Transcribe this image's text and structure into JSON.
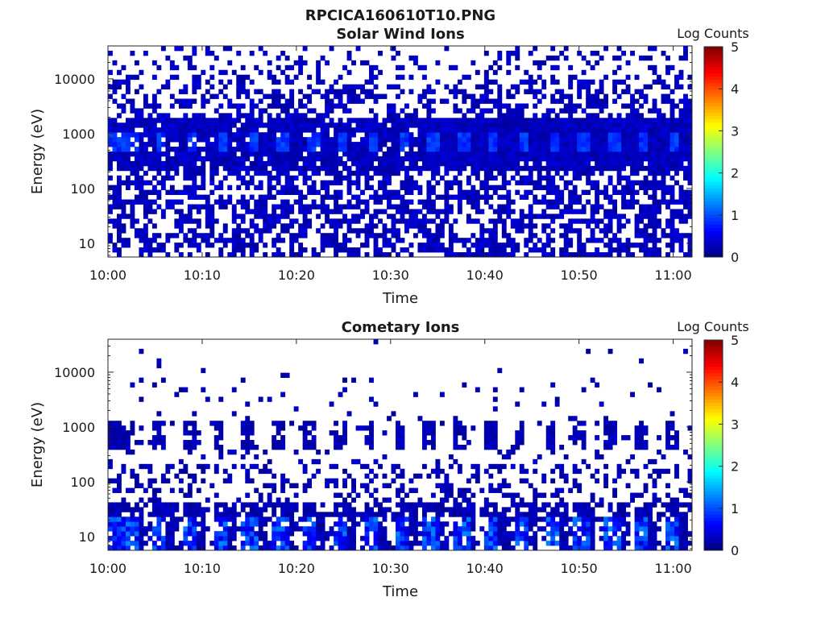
{
  "figure_title": "RPCICA160610T10.PNG",
  "chart_data": [
    {
      "type": "heatmap",
      "title": "Solar Wind Ions",
      "xlabel": "Time",
      "ylabel": "Energy (eV)",
      "x_ticks": [
        "10:00",
        "10:10",
        "10:20",
        "10:30",
        "10:40",
        "10:50",
        "11:00"
      ],
      "y_ticks": [
        "10",
        "100",
        "1000",
        "10000"
      ],
      "y_scale": "log",
      "xlim": [
        "10:00",
        "11:02"
      ],
      "ylim": [
        5.6,
        40000
      ],
      "colorbar": {
        "label": "Log Counts",
        "ticks": [
          "0",
          "1",
          "2",
          "3",
          "4",
          "5"
        ],
        "range": [
          0,
          5
        ],
        "colormap": "jet"
      },
      "features": [
        {
          "description": "dense low-level counts across all energies",
          "energy_range_eV": [
            6,
            30000
          ],
          "log_counts": [
            0,
            0.5
          ]
        },
        {
          "description": "solar wind proton peak band",
          "energy_range_eV": [
            500,
            1000
          ],
          "log_counts": [
            0.5,
            1.1
          ]
        }
      ]
    },
    {
      "type": "heatmap",
      "title": "Cometary Ions",
      "xlabel": "Time",
      "ylabel": "Energy (eV)",
      "x_ticks": [
        "10:00",
        "10:10",
        "10:20",
        "10:30",
        "10:40",
        "10:50",
        "11:00"
      ],
      "y_ticks": [
        "10",
        "100",
        "1000",
        "10000"
      ],
      "y_scale": "log",
      "xlim": [
        "10:00",
        "11:02"
      ],
      "ylim": [
        5.6,
        40000
      ],
      "colorbar": {
        "label": "Log Counts",
        "ticks": [
          "0",
          "1",
          "2",
          "3",
          "4",
          "5"
        ],
        "range": [
          0,
          5
        ],
        "colormap": "jet"
      },
      "features": [
        {
          "description": "low energy cometary ions, periodic",
          "energy_range_eV": [
            6,
            40
          ],
          "log_counts": [
            0.3,
            1.5
          ]
        },
        {
          "description": "periodic band near 1 keV",
          "energy_range_eV": [
            400,
            1200
          ],
          "log_counts": [
            0,
            0.3
          ]
        },
        {
          "description": "scattered counts",
          "energy_range_eV": [
            40,
            8000
          ],
          "log_counts": [
            0,
            0.3
          ]
        }
      ]
    }
  ]
}
